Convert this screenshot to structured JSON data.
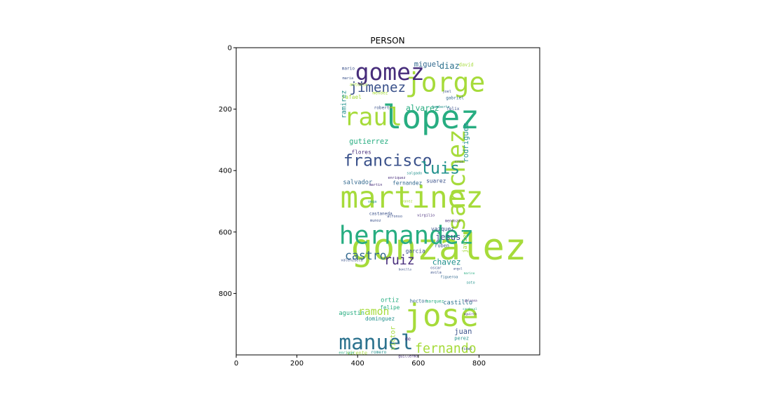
{
  "chart_data": {
    "type": "wordcloud",
    "title": "PERSON",
    "xlim": [
      0,
      1000
    ],
    "ylim": [
      0,
      1000
    ],
    "x_ticks": [
      0,
      200,
      400,
      600,
      800
    ],
    "y_ticks": [
      0,
      200,
      400,
      600,
      800
    ],
    "y_inverted": true,
    "grid": false,
    "words": [
      {
        "text": "gonzalez",
        "x": 378,
        "y": 690,
        "size": 120,
        "color": "#a6db3a"
      },
      {
        "text": "martinez",
        "x": 343,
        "y": 520,
        "size": 98,
        "color": "#a6db3a"
      },
      {
        "text": "lopez",
        "x": 482,
        "y": 263,
        "size": 106,
        "color": "#27ad81"
      },
      {
        "text": "jose",
        "x": 553,
        "y": 906,
        "size": 102,
        "color": "#a6db3a"
      },
      {
        "text": "hernandez",
        "x": 339,
        "y": 638,
        "size": 82,
        "color": "#27ad81"
      },
      {
        "text": "sanchez",
        "x": 753,
        "y": 598,
        "size": 80,
        "color": "#a6db3a",
        "rotate": true
      },
      {
        "text": "jorge",
        "x": 556,
        "y": 143,
        "size": 88,
        "color": "#a6db3a"
      },
      {
        "text": "gomez",
        "x": 392,
        "y": 105,
        "size": 76,
        "color": "#472d7b"
      },
      {
        "text": "raul",
        "x": 355,
        "y": 252,
        "size": 80,
        "color": "#a6db3a"
      },
      {
        "text": "manuel",
        "x": 338,
        "y": 982,
        "size": 68,
        "color": "#2c728e"
      },
      {
        "text": "francisco",
        "x": 353,
        "y": 385,
        "size": 54,
        "color": "#3b528b"
      },
      {
        "text": "luis",
        "x": 607,
        "y": 410,
        "size": 54,
        "color": "#21918c"
      },
      {
        "text": "jimenez",
        "x": 373,
        "y": 144,
        "size": 44,
        "color": "#3b528b"
      },
      {
        "text": "fernando",
        "x": 589,
        "y": 993,
        "size": 42,
        "color": "#a6db3a"
      },
      {
        "text": "castro",
        "x": 358,
        "y": 690,
        "size": 38,
        "color": "#31688e"
      },
      {
        "text": "ruiz",
        "x": 487,
        "y": 705,
        "size": 42,
        "color": "#472d7b"
      },
      {
        "text": "ramon",
        "x": 402,
        "y": 870,
        "size": 34,
        "color": "#a6db3a"
      },
      {
        "text": "rodriguez",
        "x": 764,
        "y": 373,
        "size": 24,
        "color": "#21918c",
        "rotate": true
      },
      {
        "text": "alvarez",
        "x": 559,
        "y": 206,
        "size": 26,
        "color": "#27ad81"
      },
      {
        "text": "gutierrez",
        "x": 372,
        "y": 313,
        "size": 24,
        "color": "#27ad81"
      },
      {
        "text": "diaz",
        "x": 669,
        "y": 69,
        "size": 28,
        "color": "#2c728e"
      },
      {
        "text": "miguel",
        "x": 586,
        "y": 62,
        "size": 24,
        "color": "#31688e"
      },
      {
        "text": "ramirez",
        "x": 362,
        "y": 230,
        "size": 22,
        "color": "#21918c",
        "rotate": true
      },
      {
        "text": "jesus",
        "x": 656,
        "y": 625,
        "size": 28,
        "color": "#3b528b"
      },
      {
        "text": "chavez",
        "x": 646,
        "y": 707,
        "size": 26,
        "color": "#21918c"
      },
      {
        "text": "juan",
        "x": 719,
        "y": 931,
        "size": 24,
        "color": "#3b528b"
      },
      {
        "text": "javier",
        "x": 760,
        "y": 668,
        "size": 20,
        "color": "#a6db3a",
        "rotate": true
      },
      {
        "text": "vazquez",
        "x": 642,
        "y": 596,
        "size": 18,
        "color": "#3b528b"
      },
      {
        "text": "salvador",
        "x": 352,
        "y": 444,
        "size": 20,
        "color": "#31688e"
      },
      {
        "text": "fernandez",
        "x": 515,
        "y": 446,
        "size": 18,
        "color": "#31688e"
      },
      {
        "text": "suarez",
        "x": 626,
        "y": 439,
        "size": 18,
        "color": "#3b528b"
      },
      {
        "text": "flores",
        "x": 380,
        "y": 346,
        "size": 18,
        "color": "#472d7b"
      },
      {
        "text": "rafael",
        "x": 348,
        "y": 167,
        "size": 18,
        "color": "#a6db3a"
      },
      {
        "text": "mendez",
        "x": 449,
        "y": 152,
        "size": 14,
        "color": "#a6db3a"
      },
      {
        "text": "roberto",
        "x": 454,
        "y": 200,
        "size": 14,
        "color": "#3b528b"
      },
      {
        "text": "garcia",
        "x": 558,
        "y": 668,
        "size": 18,
        "color": "#3b528b"
      },
      {
        "text": "ruben",
        "x": 654,
        "y": 649,
        "size": 16,
        "color": "#3b528b"
      },
      {
        "text": "castillo",
        "x": 682,
        "y": 836,
        "size": 20,
        "color": "#2c728e"
      },
      {
        "text": "ortiz",
        "x": 476,
        "y": 828,
        "size": 20,
        "color": "#27ad81"
      },
      {
        "text": "felipe",
        "x": 474,
        "y": 852,
        "size": 18,
        "color": "#27ad81"
      },
      {
        "text": "agustin",
        "x": 338,
        "y": 870,
        "size": 20,
        "color": "#27ad81"
      },
      {
        "text": "dominguez",
        "x": 425,
        "y": 888,
        "size": 18,
        "color": "#21918c"
      },
      {
        "text": "victor",
        "x": 523,
        "y": 985,
        "size": 22,
        "color": "#a6db3a",
        "rotate": true
      },
      {
        "text": "hector",
        "x": 572,
        "y": 830,
        "size": 16,
        "color": "#31688e"
      },
      {
        "text": "perez",
        "x": 719,
        "y": 951,
        "size": 16,
        "color": "#21918c"
      },
      {
        "text": "vicente",
        "x": 365,
        "y": 999,
        "size": 16,
        "color": "#a6db3a"
      },
      {
        "text": "romero",
        "x": 444,
        "y": 996,
        "size": 14,
        "color": "#21918c"
      },
      {
        "text": "enrique",
        "x": 338,
        "y": 997,
        "size": 12,
        "color": "#27ad81"
      },
      {
        "text": "de",
        "x": 556,
        "y": 953,
        "size": 16,
        "color": "#472d7b"
      },
      {
        "text": "guillermo",
        "x": 534,
        "y": 1008,
        "size": 12,
        "color": "#472d7b"
      },
      {
        "text": "fidel",
        "x": 742,
        "y": 984,
        "size": 12,
        "color": "#3b528b"
      },
      {
        "text": "david",
        "x": 734,
        "y": 60,
        "size": 16,
        "color": "#a6db3a"
      },
      {
        "text": "antonio",
        "x": 374,
        "y": 124,
        "size": 14,
        "color": "#a6db3a"
      },
      {
        "text": "mario",
        "x": 348,
        "y": 72,
        "size": 14,
        "color": "#3b528b"
      },
      {
        "text": "maria",
        "x": 350,
        "y": 103,
        "size": 12,
        "color": "#3b528b"
      },
      {
        "text": "felix",
        "x": 693,
        "y": 203,
        "size": 14,
        "color": "#3b528b"
      },
      {
        "text": "gabriel",
        "x": 691,
        "y": 168,
        "size": 14,
        "color": "#31688e"
      },
      {
        "text": "humberto",
        "x": 646,
        "y": 196,
        "size": 12,
        "color": "#21918c"
      },
      {
        "text": "joel",
        "x": 680,
        "y": 146,
        "size": 12,
        "color": "#3b528b"
      },
      {
        "text": "castaneda",
        "x": 438,
        "y": 545,
        "size": 14,
        "color": "#3b528b"
      },
      {
        "text": "alfonso",
        "x": 497,
        "y": 552,
        "size": 12,
        "color": "#3b528b"
      },
      {
        "text": "virgilio",
        "x": 596,
        "y": 549,
        "size": 12,
        "color": "#472d7b"
      },
      {
        "text": "mendoza",
        "x": 688,
        "y": 567,
        "size": 12,
        "color": "#472d7b"
      },
      {
        "text": "enriquez",
        "x": 500,
        "y": 427,
        "size": 12,
        "color": "#472d7b"
      },
      {
        "text": "martin",
        "x": 438,
        "y": 450,
        "size": 12,
        "color": "#472d7b"
      },
      {
        "text": "vega",
        "x": 434,
        "y": 504,
        "size": 12,
        "color": "#21918c"
      },
      {
        "text": "yanez",
        "x": 545,
        "y": 503,
        "size": 12,
        "color": "#a6db3a"
      },
      {
        "text": "munoz",
        "x": 441,
        "y": 566,
        "size": 12,
        "color": "#3b528b"
      },
      {
        "text": "marquez",
        "x": 625,
        "y": 830,
        "size": 14,
        "color": "#27ad81"
      },
      {
        "text": "figueroa",
        "x": 673,
        "y": 750,
        "size": 12,
        "color": "#31688e"
      },
      {
        "text": "soto",
        "x": 758,
        "y": 768,
        "size": 12,
        "color": "#21918c"
      },
      {
        "text": "cruz",
        "x": 720,
        "y": 374,
        "size": 12,
        "color": "#3b528b"
      },
      {
        "text": "salgado",
        "x": 562,
        "y": 412,
        "size": 12,
        "color": "#21918c"
      },
      {
        "text": "valenzuela",
        "x": 345,
        "y": 695,
        "size": 12,
        "color": "#3b528b"
      },
      {
        "text": "oscar",
        "x": 640,
        "y": 720,
        "size": 12,
        "color": "#3b528b"
      },
      {
        "text": "avila",
        "x": 640,
        "y": 735,
        "size": 12,
        "color": "#3b528b"
      },
      {
        "text": "galeana",
        "x": 752,
        "y": 826,
        "size": 10,
        "color": "#472d7b"
      },
      {
        "text": "sandoval",
        "x": 746,
        "y": 854,
        "size": 10,
        "color": "#27ad81"
      },
      {
        "text": "aguirre",
        "x": 750,
        "y": 870,
        "size": 10,
        "color": "#472d7b"
      },
      {
        "text": "angel",
        "x": 715,
        "y": 723,
        "size": 10,
        "color": "#3b528b"
      },
      {
        "text": "marino",
        "x": 750,
        "y": 738,
        "size": 10,
        "color": "#27ad81"
      },
      {
        "text": "bonilla",
        "x": 535,
        "y": 725,
        "size": 10,
        "color": "#3b528b"
      }
    ]
  }
}
